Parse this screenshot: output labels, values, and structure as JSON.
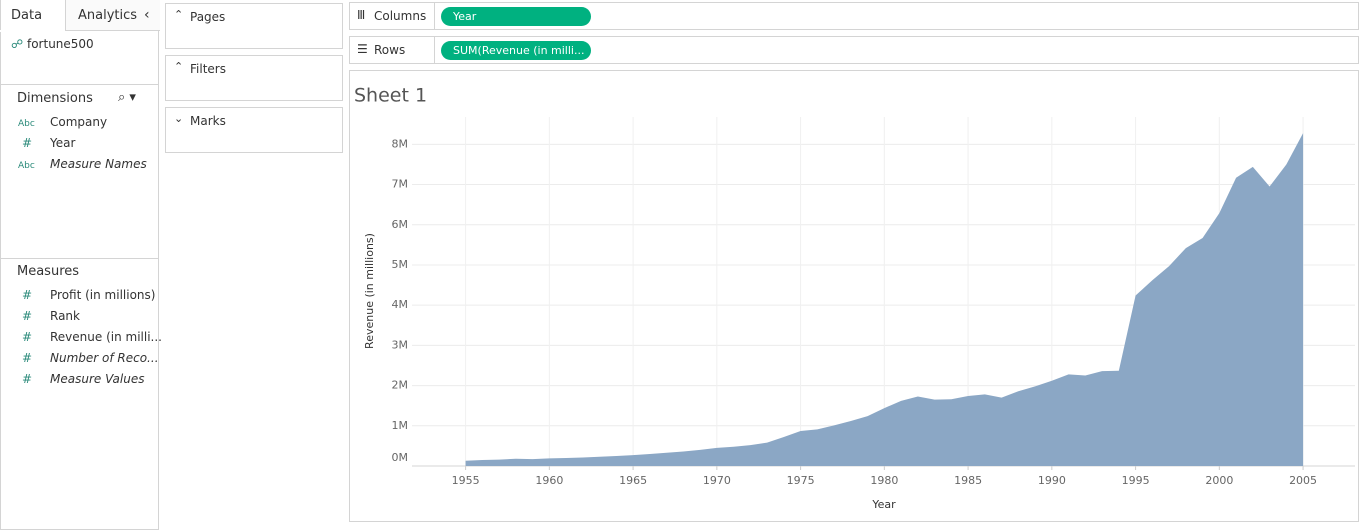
{
  "ui": {
    "tabs": [
      "Data",
      "Analytics"
    ],
    "datasource": "fortune500",
    "dimensions": {
      "title": "Dimensions",
      "items": [
        {
          "icon": "Abc",
          "label": "Company",
          "italic": false
        },
        {
          "icon": "#",
          "label": "Year",
          "italic": false
        },
        {
          "icon": "Abc",
          "label": "Measure Names",
          "italic": true
        }
      ]
    },
    "measures": {
      "title": "Measures",
      "items": [
        {
          "icon": "#",
          "label": "Profit (in millions)",
          "italic": false
        },
        {
          "icon": "#",
          "label": "Rank",
          "italic": false
        },
        {
          "icon": "#",
          "label": "Revenue (in milli...",
          "italic": false
        },
        {
          "icon": "#",
          "label": "Number of Reco...",
          "italic": true
        },
        {
          "icon": "#",
          "label": "Measure Values",
          "italic": true
        }
      ]
    },
    "cards": [
      "Pages",
      "Filters",
      "Marks"
    ],
    "shelves": [
      {
        "label": "Columns",
        "pill": "Year"
      },
      {
        "label": "Rows",
        "pill": "SUM(Revenue (in milli..."
      }
    ]
  },
  "chart_data": {
    "type": "area",
    "title": "Sheet 1",
    "x_label": "Year",
    "y_label": "Revenue (in millions)",
    "color": "#8ba7c5",
    "x": [
      1955,
      1956,
      1957,
      1958,
      1959,
      1960,
      1961,
      1962,
      1963,
      1964,
      1965,
      1966,
      1967,
      1968,
      1969,
      1970,
      1971,
      1972,
      1973,
      1974,
      1975,
      1976,
      1977,
      1978,
      1979,
      1980,
      1981,
      1982,
      1983,
      1984,
      1985,
      1986,
      1987,
      1988,
      1989,
      1990,
      1991,
      1992,
      1993,
      1994,
      1995,
      1996,
      1997,
      1998,
      1999,
      2000,
      2001,
      2002,
      2003,
      2004,
      2005
    ],
    "values": [
      130000,
      150000,
      160000,
      180000,
      170000,
      190000,
      200000,
      210000,
      230000,
      250000,
      270000,
      300000,
      330000,
      360000,
      400000,
      450000,
      480000,
      520000,
      580000,
      720000,
      870000,
      910000,
      1010000,
      1120000,
      1240000,
      1440000,
      1620000,
      1730000,
      1650000,
      1660000,
      1740000,
      1780000,
      1700000,
      1860000,
      1980000,
      2120000,
      2280000,
      2250000,
      2360000,
      2370000,
      4240000,
      4620000,
      4970000,
      5420000,
      5670000,
      6290000,
      7170000,
      7440000,
      6950000,
      7500000,
      8280000
    ],
    "xlim": [
      1951.8,
      2008.1
    ],
    "xticks": [
      1955,
      1960,
      1965,
      1970,
      1975,
      1980,
      1985,
      1990,
      1995,
      2000,
      2005
    ],
    "ylim": [
      0,
      8680000
    ],
    "yticks": [
      {
        "value": 0,
        "label": "0M"
      },
      {
        "value": 1000000,
        "label": "1M"
      },
      {
        "value": 2000000,
        "label": "2M"
      },
      {
        "value": 3000000,
        "label": "3M"
      },
      {
        "value": 4000000,
        "label": "4M"
      },
      {
        "value": 5000000,
        "label": "5M"
      },
      {
        "value": 6000000,
        "label": "6M"
      },
      {
        "value": 7000000,
        "label": "7M"
      },
      {
        "value": 8000000,
        "label": "8M"
      }
    ],
    "grid": true
  }
}
